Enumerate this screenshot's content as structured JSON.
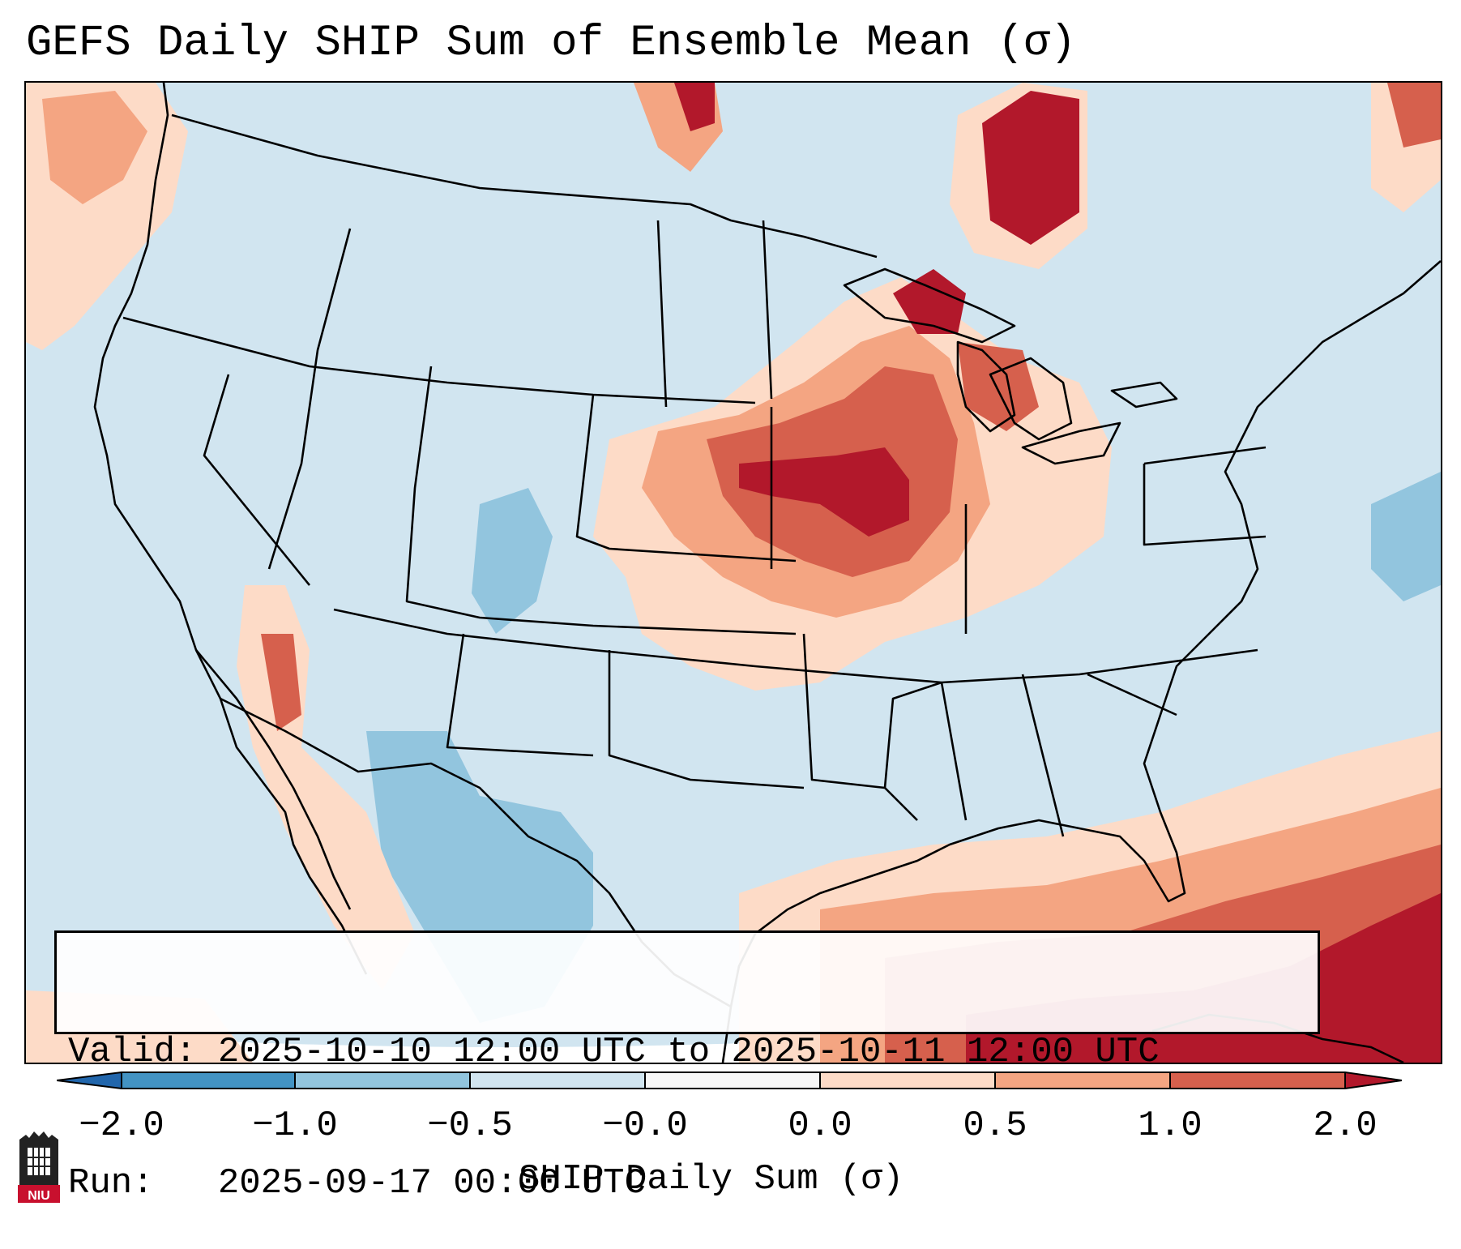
{
  "title": "GEFS Daily SHIP Sum of Ensemble Mean (σ)",
  "info": {
    "valid_line": "Valid: 2025-10-10 12:00 UTC to 2025-10-11 12:00 UTC",
    "run_line": "Run:   2025-09-17 00:00 UTC"
  },
  "colorbar": {
    "label": "SHIP Daily Sum (σ)",
    "ticks": [
      "−2.0",
      "−1.0",
      "−0.5",
      "−0.0",
      "0.0",
      "0.5",
      "1.0",
      "2.0"
    ],
    "colors": {
      "below_-2": "#2166ac",
      "-2_to_-1": "#4393c3",
      "-1_to_-0.5": "#92c5de",
      "-0.5_to_0": "#d1e5f0",
      "zero": "#f7f7f7",
      "0_to_0.5": "#fddbc7",
      "0.5_to_1": "#f4a582",
      "1_to_2": "#d6604d",
      "above_2": "#b2182b"
    }
  },
  "logo_text": "NIU"
}
